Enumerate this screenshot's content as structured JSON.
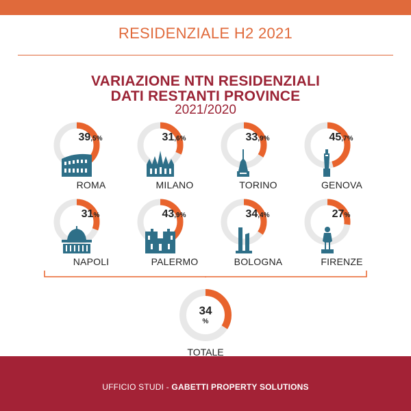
{
  "header": {
    "title": "RESIDENZIALE H2 2021"
  },
  "main_title": {
    "line1": "VARIAZIONE NTN RESIDENZIALI",
    "line2": "DATI RESTANTI PROVINCE",
    "period": "2021/2020"
  },
  "colors": {
    "accent": "#e8632c",
    "track": "#e8e8e8",
    "brand": "#a32236",
    "icon": "#2e6f88"
  },
  "chart_data": {
    "type": "donut",
    "title": "VARIAZIONE NTN RESIDENZIALI DATI RESTANTI PROVINCE",
    "subtitle": "2021/2020",
    "unit": "%",
    "items": [
      {
        "name": "ROMA",
        "value": 39.5,
        "int": "39",
        "dec": ",5",
        "icon": "colosseum-icon"
      },
      {
        "name": "MILANO",
        "value": 31.6,
        "int": "31",
        "dec": ",6",
        "icon": "milan-cathedral-icon"
      },
      {
        "name": "TORINO",
        "value": 33.9,
        "int": "33",
        "dec": ",9",
        "icon": "mole-antonelliana-icon"
      },
      {
        "name": "GENOVA",
        "value": 45.7,
        "int": "45",
        "dec": ",7",
        "icon": "lighthouse-icon"
      },
      {
        "name": "NAPOLI",
        "value": 31,
        "int": "31",
        "dec": "",
        "icon": "plebiscito-dome-icon"
      },
      {
        "name": "PALERMO",
        "value": 43.9,
        "int": "43",
        "dec": ",9",
        "icon": "palermo-cathedral-icon"
      },
      {
        "name": "BOLOGNA",
        "value": 34.4,
        "int": "34",
        "dec": ",4",
        "icon": "two-towers-icon"
      },
      {
        "name": "FIRENZE",
        "value": 27,
        "int": "27",
        "dec": "",
        "icon": "david-statue-icon"
      }
    ],
    "total": {
      "name": "TOTALE",
      "value": 34,
      "int": "34",
      "dec": "%"
    }
  },
  "footer": {
    "prefix": "UFFICIO STUDI - ",
    "brand": "GABETTI PROPERTY SOLUTIONS"
  }
}
